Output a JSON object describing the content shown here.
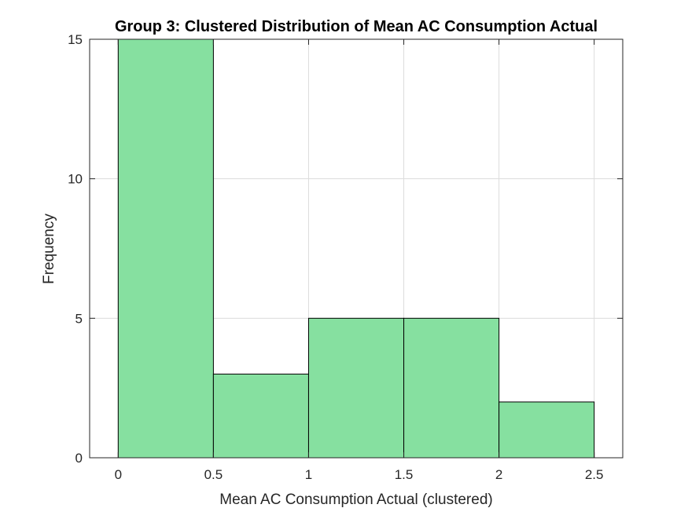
{
  "chart_data": {
    "type": "bar",
    "title": "Group 3: Clustered Distribution of Mean AC Consumption Actual",
    "xlabel": "Mean AC Consumption Actual (clustered)",
    "ylabel": "Frequency",
    "bin_edges": [
      0,
      0.5,
      1,
      1.5,
      2,
      2.5
    ],
    "values": [
      15,
      3,
      5,
      5,
      2
    ],
    "xlim": [
      -0.15,
      2.65
    ],
    "ylim": [
      0,
      15
    ],
    "xticks": [
      0,
      0.5,
      1,
      1.5,
      2,
      2.5
    ],
    "xtick_labels": [
      "0",
      "0.5",
      "1",
      "1.5",
      "2",
      "2.5"
    ],
    "yticks": [
      0,
      5,
      10,
      15
    ],
    "ytick_labels": [
      "0",
      "5",
      "10",
      "15"
    ],
    "grid": true,
    "bar_color": "#86e0a0",
    "edge_color": "#000000"
  }
}
